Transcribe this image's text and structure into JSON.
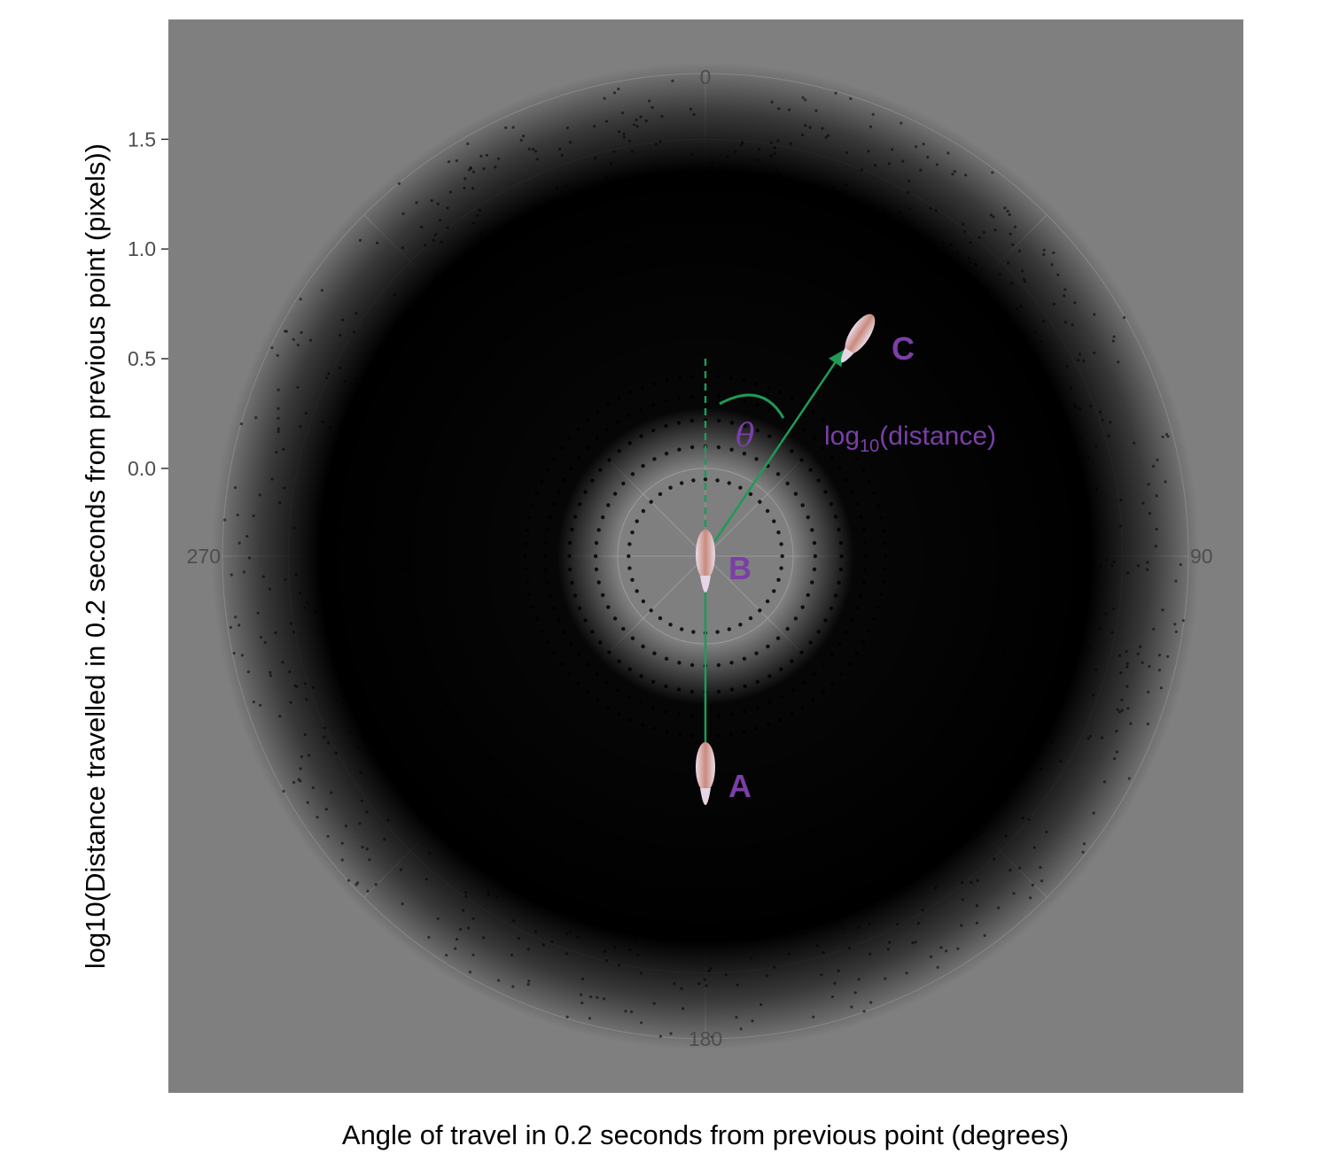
{
  "colors": {
    "panel": "#7f7f7f",
    "grid": "#9a9a9a",
    "points": "#000000",
    "annotation": "#7b3fa8",
    "arrow": "#1f9a57",
    "fish_body": "#c98a7a"
  },
  "icons": {
    "fish": "fish-larva-icon"
  },
  "chart_data": {
    "type": "scatter",
    "coordinate_system": "polar",
    "title": "",
    "xlabel": "Angle of travel in 0.2 seconds from previous point (degrees)",
    "ylabel": "log10(Distance travelled in 0.2 seconds from previous point (pixels))",
    "angle_ticks": [
      "0",
      "90",
      "180",
      "270"
    ],
    "angle_tick_values": [
      0,
      90,
      180,
      270
    ],
    "radius_ticks": [
      "0.0",
      "0.5",
      "1.0",
      "1.5"
    ],
    "radius_tick_values": [
      0.0,
      0.5,
      1.0,
      1.5
    ],
    "radius_range": [
      -0.4,
      1.8
    ],
    "angle_range": [
      0,
      360
    ],
    "grid": true,
    "point_density_note": "Dense point cloud of many thousands of points, radius mostly 0.2–1.6",
    "annotations": {
      "A": "A",
      "B": "B",
      "C": "C",
      "theta": "θ",
      "distance_label_prefix": "log",
      "distance_label_sub": "10",
      "distance_label_suffix": "(distance)"
    }
  }
}
